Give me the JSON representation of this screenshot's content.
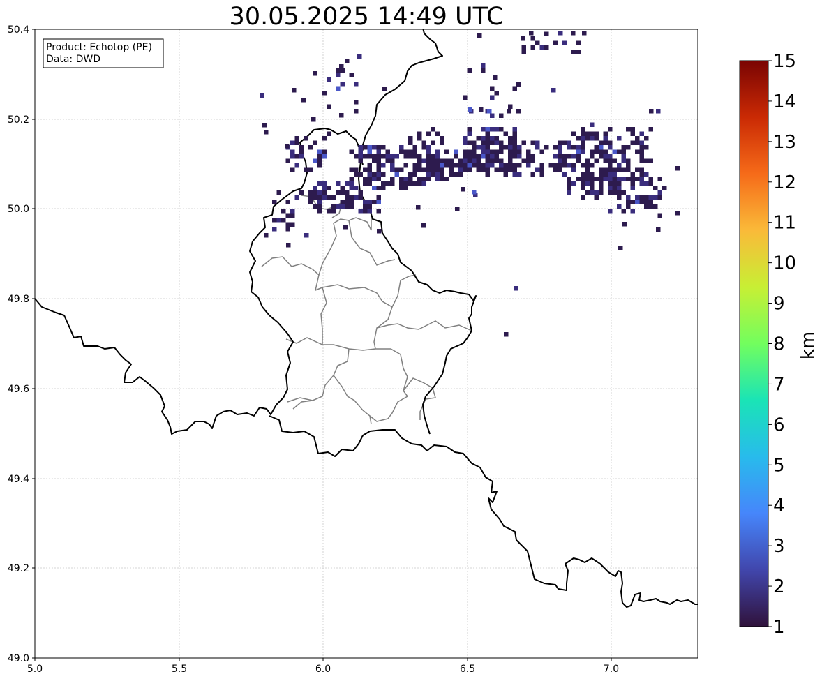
{
  "title": "30.05.2025 14:49 UTC",
  "info_box": {
    "product_line": "Product: Echotop (PE)",
    "data_line": "Data: DWD"
  },
  "map": {
    "x_ticks": [
      "5.0",
      "5.5",
      "6.0",
      "6.5",
      "7.0"
    ],
    "y_ticks": [
      "49.0",
      "49.2",
      "49.4",
      "49.6",
      "49.8",
      "50.0",
      "50.2",
      "50.4"
    ],
    "lon_range": [
      5.0,
      7.3
    ],
    "lat_range": [
      49.0,
      50.4
    ],
    "grid": true,
    "border_color": "#000000",
    "district_color": "#808080",
    "gridline_color": "#c8c8c8"
  },
  "colorbar": {
    "label": "km",
    "ticks": [
      "1",
      "2",
      "3",
      "4",
      "5",
      "6",
      "7",
      "8",
      "9",
      "10",
      "11",
      "12",
      "13",
      "14",
      "15"
    ],
    "range": [
      1,
      15
    ],
    "colormap": "turbo",
    "stops": [
      "#30123b",
      "#4146ac",
      "#4686fb",
      "#28bbec",
      "#1ae4b6",
      "#72fe5e",
      "#c8ef34",
      "#faba39",
      "#f66b19",
      "#ca2a04",
      "#7a0403"
    ]
  },
  "echo_cells": {
    "dominant_color": "#2d1b4e",
    "medium_color": "#3a2d7d",
    "light_color": "#4a57c8"
  }
}
